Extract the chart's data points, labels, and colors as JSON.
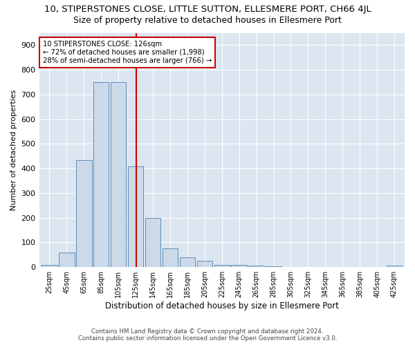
{
  "title": "10, STIPERSTONES CLOSE, LITTLE SUTTON, ELLESMERE PORT, CH66 4JL",
  "subtitle": "Size of property relative to detached houses in Ellesmere Port",
  "xlabel": "Distribution of detached houses by size in Ellesmere Port",
  "ylabel": "Number of detached properties",
  "categories": [
    "25sqm",
    "45sqm",
    "65sqm",
    "85sqm",
    "105sqm",
    "125sqm",
    "145sqm",
    "165sqm",
    "185sqm",
    "205sqm",
    "225sqm",
    "245sqm",
    "265sqm",
    "285sqm",
    "305sqm",
    "325sqm",
    "345sqm",
    "365sqm",
    "385sqm",
    "405sqm",
    "425sqm"
  ],
  "values": [
    10,
    60,
    435,
    750,
    750,
    410,
    200,
    75,
    40,
    25,
    10,
    10,
    5,
    2,
    0,
    0,
    0,
    0,
    0,
    0,
    5
  ],
  "bar_color": "#ccd9e8",
  "bar_edge_color": "#5b8db8",
  "property_line_color": "#cc0000",
  "annotation_line1": "10 STIPERSTONES CLOSE: 126sqm",
  "annotation_line2": "← 72% of detached houses are smaller (1,998)",
  "annotation_line3": "28% of semi-detached houses are larger (766) →",
  "annotation_box_color": "#ffffff",
  "annotation_box_edge_color": "#cc0000",
  "ylim": [
    0,
    950
  ],
  "yticks": [
    0,
    100,
    200,
    300,
    400,
    500,
    600,
    700,
    800,
    900
  ],
  "fig_background": "#ffffff",
  "plot_background": "#dce6f0",
  "grid_color": "#ffffff",
  "footer_line1": "Contains HM Land Registry data © Crown copyright and database right 2024.",
  "footer_line2": "Contains public sector information licensed under the Open Government Licence v3.0.",
  "title_fontsize": 9.5,
  "subtitle_fontsize": 9,
  "bar_centers": [
    25,
    45,
    65,
    85,
    105,
    125,
    145,
    165,
    185,
    205,
    225,
    245,
    265,
    285,
    305,
    325,
    345,
    365,
    385,
    405,
    425
  ],
  "property_size": 126
}
